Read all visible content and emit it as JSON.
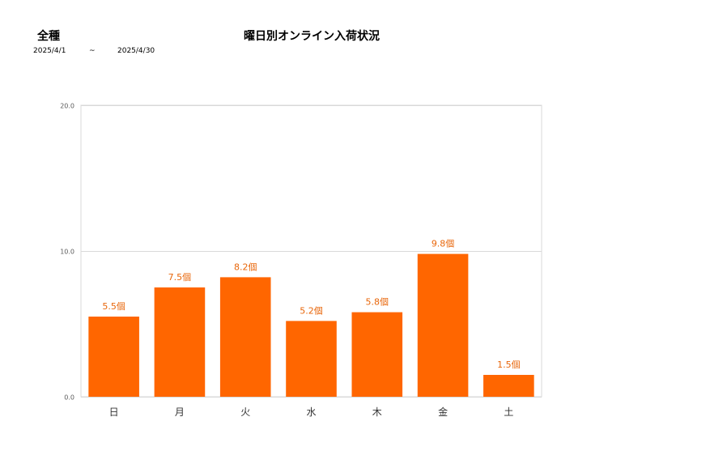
{
  "header": {
    "category": "全種",
    "title": "曜日別オンライン入荷状況",
    "date_from": "2025/4/1",
    "date_sep": "~",
    "date_to": "2025/4/30"
  },
  "colors": {
    "bar": "#ff6600",
    "data_label": "#e8660a",
    "gridline": "#d9d9d9",
    "tick_label": "#595959"
  },
  "chart_data": {
    "type": "bar",
    "title": "曜日別オンライン入荷状況",
    "categories": [
      "日",
      "月",
      "火",
      "水",
      "木",
      "金",
      "土"
    ],
    "values": [
      5.5,
      7.5,
      8.2,
      5.2,
      5.8,
      9.8,
      1.5
    ],
    "data_labels": [
      "5.5個",
      "7.5個",
      "8.2個",
      "5.2個",
      "5.8個",
      "9.8個",
      "1.5個"
    ],
    "ylim": [
      0,
      20
    ],
    "yticks": [
      "0.0",
      "10.0",
      "20.0"
    ],
    "xlabel": "",
    "ylabel": "",
    "grid": true,
    "legend": "none"
  }
}
